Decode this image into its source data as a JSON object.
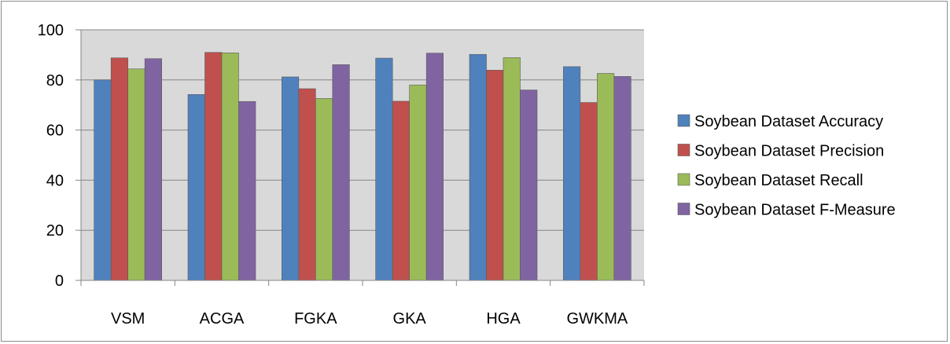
{
  "chart_data": {
    "type": "bar",
    "categories": [
      "VSM",
      "ACGA",
      "FGKA",
      "GKA",
      "HGA",
      "GWKMA"
    ],
    "series": [
      {
        "name": "Soybean Dataset Accuracy",
        "color": "#4f81bd",
        "values": [
          80.0,
          74.2,
          81.2,
          88.7,
          90.2,
          85.3
        ]
      },
      {
        "name": "Soybean Dataset Precision",
        "color": "#c0504d",
        "values": [
          88.8,
          91.0,
          76.5,
          71.5,
          83.9,
          71.0
        ]
      },
      {
        "name": "Soybean Dataset Recall",
        "color": "#9bbb59",
        "values": [
          84.4,
          90.8,
          72.6,
          78.0,
          88.9,
          82.6
        ]
      },
      {
        "name": "Soybean Dataset F-Measure",
        "color": "#8064a2",
        "values": [
          88.5,
          71.4,
          86.1,
          90.7,
          76.0,
          81.4
        ]
      }
    ],
    "yticks": [
      "0",
      "20",
      "40",
      "60",
      "80",
      "100"
    ],
    "ylim": [
      0,
      100
    ],
    "title": "",
    "xlabel": "",
    "ylabel": "",
    "grid": true,
    "legend_position": "right",
    "plot_background": "#d9d9d9"
  }
}
